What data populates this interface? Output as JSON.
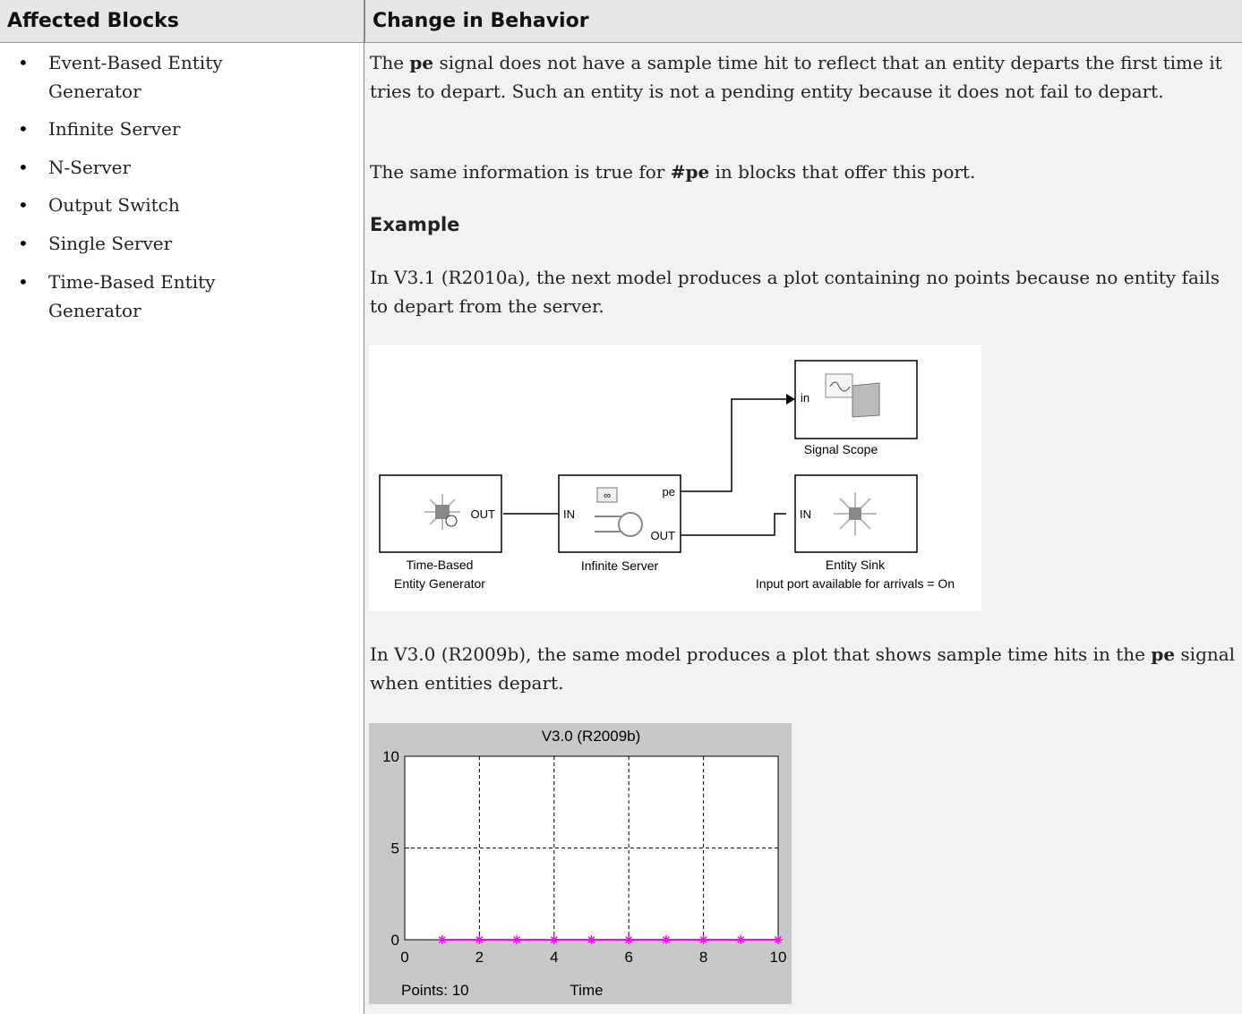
{
  "table": {
    "header": [
      "Affected Blocks",
      "Change in Behavior"
    ],
    "affected_blocks": [
      "Event-Based Entity Generator",
      "Infinite Server",
      "N-Server",
      "Output Switch",
      "Single Server",
      "Time-Based Entity Generator"
    ],
    "change": {
      "p1": [
        "The ",
        "pe",
        " signal does not have a sample time hit to reflect that an entity departs the first time it tries to depart. Such an entity is not a pending entity because it does not fail to depart."
      ],
      "p2": [
        "The same information is true for ",
        "#pe",
        " in blocks that offer this port."
      ],
      "heading": "Example",
      "p3": "In V3.1 (R2010a), the next model produces a plot containing no points because no entity fails to depart from the server.",
      "diagram": {
        "scope": {
          "label": "Signal Scope",
          "ports": [
            "in"
          ]
        },
        "generator": {
          "label": [
            "Time-Based",
            "Entity Generator"
          ],
          "ports": [
            "OUT"
          ]
        },
        "server": {
          "label": "Infinite Server",
          "ports": [
            "IN",
            "pe",
            "OUT"
          ]
        },
        "sink": {
          "label": "Entity Sink",
          "note": "Input port available for arrivals = On",
          "ports": [
            "IN"
          ]
        }
      },
      "p4": [
        "In V3.0 (R2009b), the same model produces a plot that shows sample time hits in the ",
        "pe",
        " signal when entities depart."
      ],
      "chart": {
        "type": "line",
        "title": "V3.0 (R2009b)",
        "xlabel": "Time",
        "points_label": "Points: 10",
        "x": [
          1,
          2,
          3,
          4,
          5,
          6,
          7,
          8,
          9,
          10
        ],
        "y": [
          0,
          0,
          0,
          0,
          0,
          0,
          0,
          0,
          0,
          0
        ],
        "color": "#ff00ff",
        "xlim": [
          0,
          10
        ],
        "ylim": [
          0,
          10
        ],
        "xticks": [
          0,
          2,
          4,
          6,
          8,
          10
        ],
        "yticks": [
          0,
          5,
          10
        ],
        "grid": true
      }
    }
  }
}
